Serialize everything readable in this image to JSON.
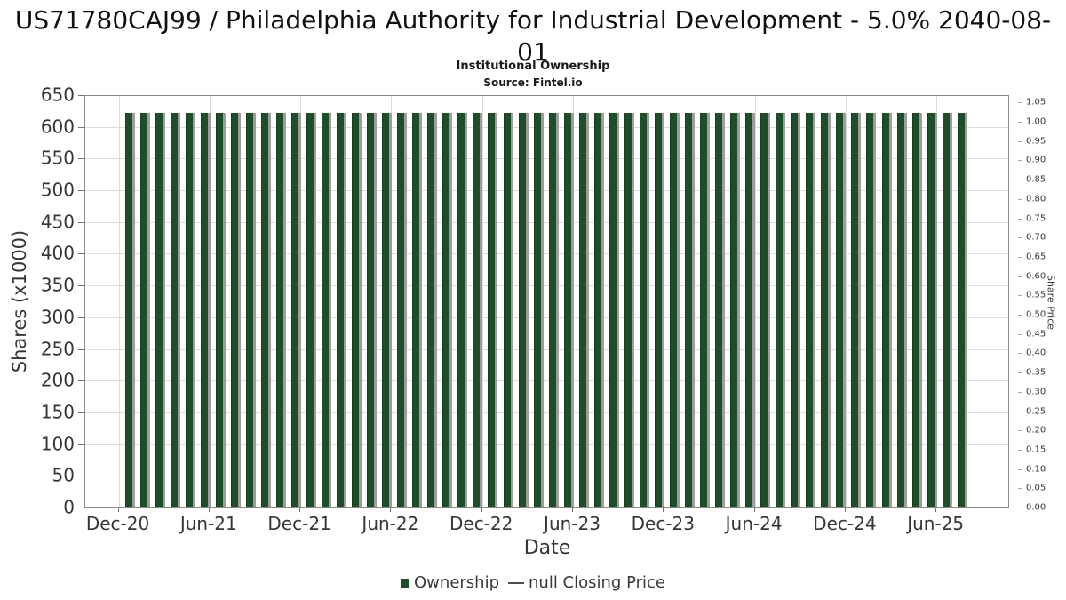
{
  "header": {
    "title": "US71780CAJ99 / Philadelphia Authority for Industrial Development - 5.0% 2040-08-01",
    "subtitle": "Institutional Ownership",
    "source": "Source: Fintel.io"
  },
  "colors": {
    "bar_green": "#1e4e29",
    "bar_shadow": "#9d9d9d",
    "grid": "#dcdcdc",
    "legend_line": "#4d4d4d",
    "tick_text": "#363636"
  },
  "chart_data": {
    "type": "bar",
    "title": "Institutional Ownership",
    "subtitle": "Source: Fintel.io",
    "xlabel": "Date",
    "ylabel_left": "Shares (x1000)",
    "ylabel_right": "Share Price",
    "grid": true,
    "legend_position": "bottom",
    "y_left_range": [
      0,
      650
    ],
    "y_left_ticks": [
      0,
      50,
      100,
      150,
      200,
      250,
      300,
      350,
      400,
      450,
      500,
      550,
      600,
      650
    ],
    "y_right_range": [
      0.0,
      1.05
    ],
    "y_right_ticks": [
      "0.00",
      "0.05",
      "0.10",
      "0.15",
      "0.20",
      "0.25",
      "0.30",
      "0.35",
      "0.40",
      "0.45",
      "0.50",
      "0.55",
      "0.60",
      "0.65",
      "0.70",
      "0.75",
      "0.80",
      "0.85",
      "0.90",
      "0.95",
      "1.00",
      "1.05"
    ],
    "x_tick_labels": [
      "Dec-20",
      "Jun-21",
      "Dec-21",
      "Jun-22",
      "Dec-22",
      "Jun-23",
      "Dec-23",
      "Jun-24",
      "Dec-24",
      "Jun-25"
    ],
    "categories": [
      "Jan-21",
      "Feb-21",
      "Mar-21",
      "Apr-21",
      "May-21",
      "Jun-21",
      "Jul-21",
      "Aug-21",
      "Sep-21",
      "Oct-21",
      "Nov-21",
      "Dec-21",
      "Jan-22",
      "Feb-22",
      "Mar-22",
      "Apr-22",
      "May-22",
      "Jun-22",
      "Jul-22",
      "Aug-22",
      "Sep-22",
      "Oct-22",
      "Nov-22",
      "Dec-22",
      "Jan-23",
      "Feb-23",
      "Mar-23",
      "Apr-23",
      "May-23",
      "Jun-23",
      "Jul-23",
      "Aug-23",
      "Sep-23",
      "Oct-23",
      "Nov-23",
      "Dec-23",
      "Jan-24",
      "Feb-24",
      "Mar-24",
      "Apr-24",
      "May-24",
      "Jun-24",
      "Jul-24",
      "Aug-24",
      "Sep-24",
      "Oct-24",
      "Nov-24",
      "Dec-24",
      "Jan-25",
      "Feb-25",
      "Mar-25",
      "Apr-25",
      "May-25",
      "Jun-25",
      "Jul-25",
      "Aug-25"
    ],
    "series": [
      {
        "name": "Ownership",
        "type": "bar",
        "color": "#1e4e29",
        "values": [
          620,
          620,
          620,
          620,
          620,
          620,
          620,
          620,
          620,
          620,
          620,
          620,
          620,
          620,
          620,
          620,
          620,
          620,
          620,
          620,
          620,
          620,
          620,
          620,
          620,
          620,
          620,
          620,
          620,
          620,
          620,
          620,
          620,
          620,
          620,
          620,
          620,
          620,
          620,
          620,
          620,
          620,
          620,
          620,
          620,
          620,
          620,
          620,
          620,
          620,
          620,
          620,
          620,
          620,
          620,
          620
        ]
      },
      {
        "name": "null Closing Price",
        "type": "line",
        "color": "#4d4d4d",
        "values": []
      }
    ]
  },
  "legend": {
    "items": [
      {
        "label": "Ownership",
        "marker": "square",
        "color": "#1e4e29"
      },
      {
        "label": "null Closing Price",
        "marker": "line",
        "color": "#4d4d4d"
      }
    ]
  }
}
